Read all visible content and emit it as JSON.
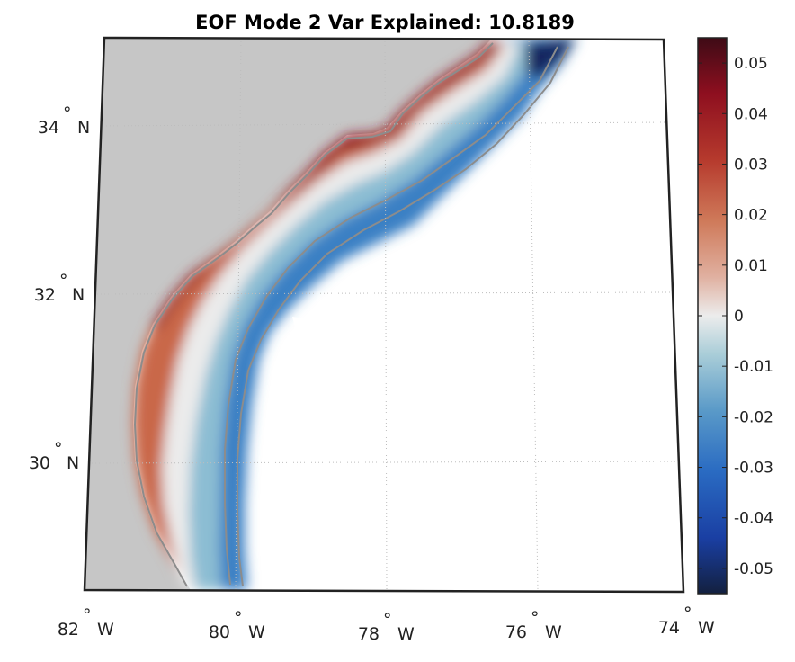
{
  "chart_data": {
    "type": "heatmap",
    "title": "EOF Mode 2 Var Explained: 10.8189",
    "map_projection": "lambert",
    "lon_range": [
      -82,
      -74
    ],
    "lat_range": [
      28.5,
      35
    ],
    "lon_ticks": [
      {
        "lon": -82,
        "label": "82",
        "hemi": "W"
      },
      {
        "lon": -80,
        "label": "80",
        "hemi": "W"
      },
      {
        "lon": -78,
        "label": "78",
        "hemi": "W"
      },
      {
        "lon": -76,
        "label": "76",
        "hemi": "W"
      },
      {
        "lon": -74,
        "label": "74",
        "hemi": "W"
      }
    ],
    "lat_ticks": [
      {
        "lat": 30,
        "label": "30",
        "hemi": "N"
      },
      {
        "lat": 32,
        "label": "32",
        "hemi": "N"
      },
      {
        "lat": 34,
        "label": "34",
        "hemi": "N"
      }
    ],
    "grid": true,
    "colorbar": {
      "position": "right",
      "colormap": "diverging red-white-blue",
      "clim": [
        -0.055,
        0.055
      ],
      "ticks": [
        0.05,
        0.04,
        0.03,
        0.02,
        0.01,
        0,
        -0.01,
        -0.02,
        -0.03,
        -0.04,
        -0.05
      ],
      "tick_labels": [
        "0.05",
        "0.04",
        "0.03",
        "0.02",
        "0.01",
        "0",
        "-0.01",
        "-0.02",
        "-0.03",
        "-0.04",
        "-0.05"
      ]
    },
    "field_description": "positive nearshore (~0.03 to 0.05), crossing zero mid-shelf, negative offshore (~-0.02 to -0.05)"
  },
  "colors": {
    "land": "#c6c6c6",
    "coast_contour": "#8c8c8c",
    "grid": "#bbbbbb",
    "cmap": [
      "#13203f",
      "#1a3fa3",
      "#2a6bc2",
      "#5a9ac8",
      "#a9cdd8",
      "#ececec",
      "#e0b0a0",
      "#cf7a5a",
      "#b63a2d",
      "#8e0f1f",
      "#3e0b16"
    ]
  }
}
